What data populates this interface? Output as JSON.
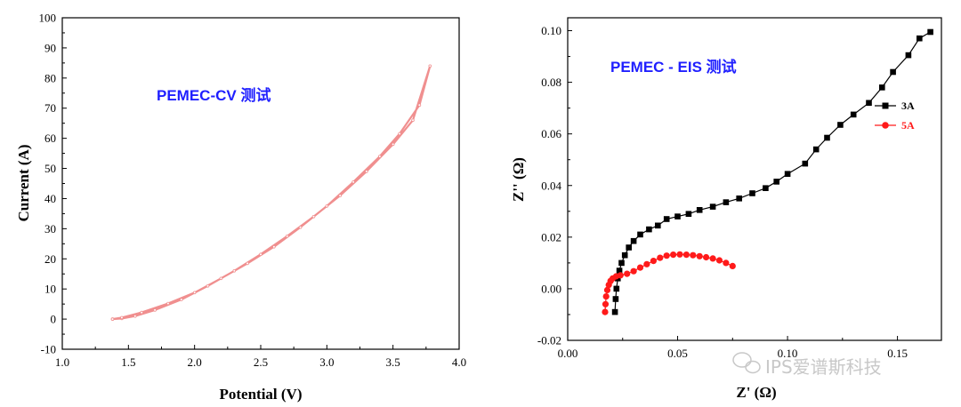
{
  "colors": {
    "cv": "#f08f8f",
    "series_3A": "#000000",
    "series_5A": "#ff1a1a",
    "annotation": "#1f1fff",
    "watermark": "#c8c8c8"
  },
  "watermark": {
    "icon": "wechat-icon",
    "text": "IPS爱谱斯科技"
  },
  "chart_data": [
    {
      "type": "line",
      "annotation": "PEMEC-CV  测试",
      "xlabel": "Potential (V)",
      "ylabel": "Current (A)",
      "xlim": [
        1.0,
        4.0
      ],
      "ylim": [
        -10,
        100
      ],
      "xticks": [
        "1.0",
        "1.5",
        "2.0",
        "2.5",
        "3.0",
        "3.5",
        "4.0"
      ],
      "yticks": [
        "-10",
        "0",
        "10",
        "20",
        "30",
        "40",
        "50",
        "60",
        "70",
        "80",
        "90",
        "100"
      ],
      "series": [
        {
          "name": "CV",
          "x": [
            1.38,
            1.45,
            1.55,
            1.7,
            1.9,
            2.1,
            2.3,
            2.5,
            2.7,
            2.9,
            3.1,
            3.3,
            3.5,
            3.65,
            3.78,
            3.7,
            3.55,
            3.4,
            3.2,
            3.0,
            2.8,
            2.6,
            2.4,
            2.2,
            2.0,
            1.8,
            1.6,
            1.45,
            1.38
          ],
          "y": [
            0,
            0.2,
            1,
            3,
            6.5,
            11,
            16,
            21.5,
            27.5,
            34,
            41,
            49,
            58,
            66,
            84,
            71,
            61.5,
            54,
            45.5,
            37.5,
            30.5,
            24,
            18.5,
            13.5,
            8.8,
            5.2,
            2.2,
            0.5,
            0
          ]
        }
      ]
    },
    {
      "type": "line",
      "annotation": "PEMEC -  EIS 测试",
      "xlabel": "Z' (Ω)",
      "ylabel": "Z'' (Ω)",
      "xlim": [
        0.0,
        0.17
      ],
      "ylim": [
        -0.02,
        0.105
      ],
      "xticks": [
        "0.00",
        "0.05",
        "0.10",
        "0.15"
      ],
      "yticks": [
        "-0.02",
        "0.00",
        "0.02",
        "0.04",
        "0.06",
        "0.08",
        "0.10"
      ],
      "legend": [
        "3A",
        "5A"
      ],
      "series": [
        {
          "name": "3A",
          "x": [
            0.0215,
            0.0218,
            0.0222,
            0.0228,
            0.0235,
            0.0245,
            0.026,
            0.0278,
            0.03,
            0.033,
            0.037,
            0.041,
            0.045,
            0.05,
            0.055,
            0.06,
            0.066,
            0.072,
            0.078,
            0.084,
            0.09,
            0.095,
            0.1,
            0.108,
            0.113,
            0.118,
            0.124,
            0.13,
            0.137,
            0.143,
            0.148,
            0.155,
            0.16,
            0.165
          ],
          "y": [
            -0.009,
            -0.004,
            0.0,
            0.004,
            0.007,
            0.01,
            0.013,
            0.016,
            0.0185,
            0.021,
            0.023,
            0.0245,
            0.027,
            0.028,
            0.029,
            0.0305,
            0.0318,
            0.0335,
            0.035,
            0.037,
            0.039,
            0.0415,
            0.0445,
            0.0485,
            0.054,
            0.0585,
            0.0635,
            0.0675,
            0.072,
            0.078,
            0.084,
            0.0905,
            0.097,
            0.0995
          ]
        },
        {
          "name": "5A",
          "x": [
            0.017,
            0.0172,
            0.0175,
            0.018,
            0.0187,
            0.0195,
            0.0205,
            0.022,
            0.024,
            0.027,
            0.03,
            0.033,
            0.036,
            0.039,
            0.042,
            0.045,
            0.048,
            0.051,
            0.054,
            0.057,
            0.06,
            0.063,
            0.066,
            0.069,
            0.072,
            0.075
          ],
          "y": [
            -0.009,
            -0.006,
            -0.003,
            -0.0005,
            0.0015,
            0.003,
            0.004,
            0.0048,
            0.0052,
            0.0058,
            0.0068,
            0.0082,
            0.0095,
            0.0108,
            0.012,
            0.0128,
            0.0132,
            0.0133,
            0.0132,
            0.013,
            0.0126,
            0.0122,
            0.0117,
            0.011,
            0.01,
            0.0088
          ]
        }
      ]
    }
  ]
}
